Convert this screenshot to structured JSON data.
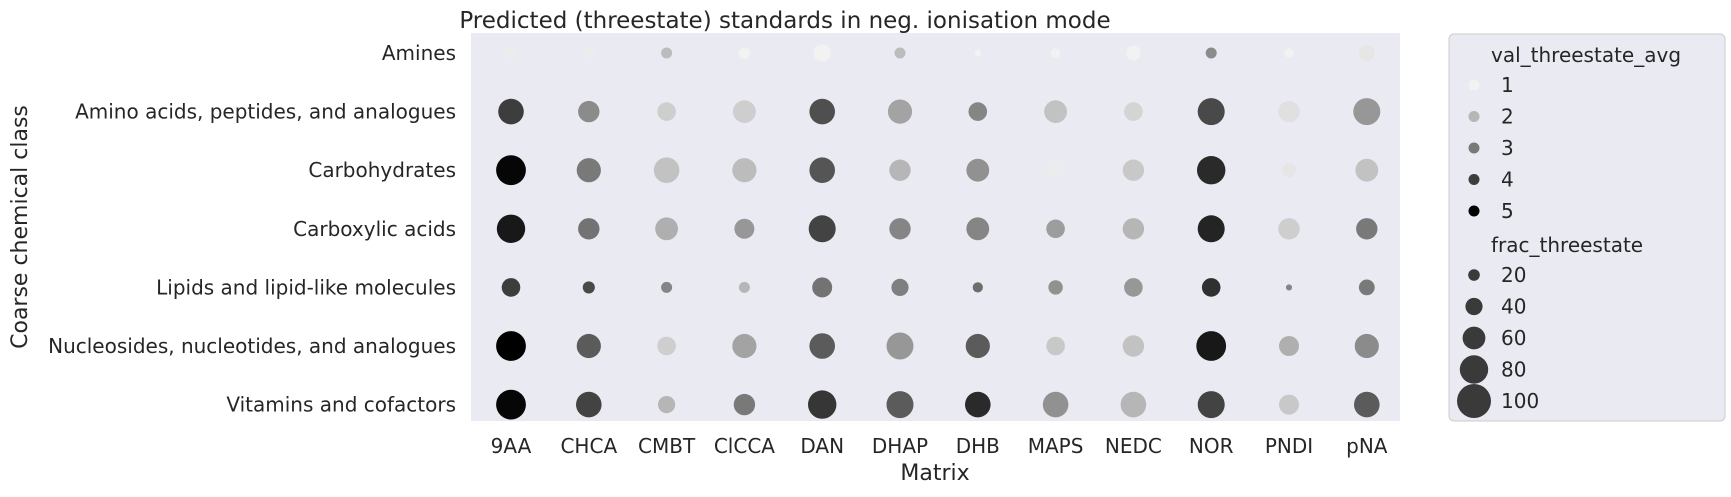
{
  "chart_data": {
    "type": "scatter",
    "title": "Predicted (threestate) standards in neg. ionisation mode",
    "xlabel": "Matrix",
    "ylabel": "Coarse chemical class",
    "categories_x": [
      "9AA",
      "CHCA",
      "CMBT",
      "ClCCA",
      "DAN",
      "DHAP",
      "DHB",
      "MAPS",
      "NEDC",
      "NOR",
      "PNDI",
      "pNA"
    ],
    "categories_y": [
      "Amines",
      "Amino acids, peptides, and analogues",
      "Carbohydrates",
      "Carboxylic acids",
      "Lipids and lipid-like molecules",
      "Nucleosides, nucleotides, and analogues",
      "Vitamins and cofactors"
    ],
    "color_field": "val_threestate_avg",
    "size_field": "frac_threestate",
    "color_levels": [
      1,
      2,
      3,
      4,
      5
    ],
    "size_levels": [
      20,
      40,
      60,
      80,
      100
    ],
    "legend_position": "right, outside plot",
    "grid": false,
    "background": "#eaeaf2",
    "colors": {
      "low": "#f2f2f2",
      "high": "#000000"
    },
    "points": [
      {
        "x": "9AA",
        "y": "Amines",
        "color": 1.1,
        "size": 25
      },
      {
        "x": "CHCA",
        "y": "Amines",
        "color": 1.1,
        "size": 22
      },
      {
        "x": "CMBT",
        "y": "Amines",
        "color": 1.9,
        "size": 18
      },
      {
        "x": "ClCCA",
        "y": "Amines",
        "color": 1.0,
        "size": 20
      },
      {
        "x": "DAN",
        "y": "Amines",
        "color": 1.0,
        "size": 40
      },
      {
        "x": "DHAP",
        "y": "Amines",
        "color": 1.9,
        "size": 18
      },
      {
        "x": "DHB",
        "y": "Amines",
        "color": 1.0,
        "size": 3
      },
      {
        "x": "MAPS",
        "y": "Amines",
        "color": 1.0,
        "size": 12
      },
      {
        "x": "NEDC",
        "y": "Amines",
        "color": 1.0,
        "size": 30
      },
      {
        "x": "NOR",
        "y": "Amines",
        "color": 2.7,
        "size": 18
      },
      {
        "x": "PNDI",
        "y": "Amines",
        "color": 1.0,
        "size": 12
      },
      {
        "x": "pNA",
        "y": "Amines",
        "color": 1.2,
        "size": 35
      },
      {
        "x": "9AA",
        "y": "Amino acids, peptides, and analogues",
        "color": 4.0,
        "size": 70
      },
      {
        "x": "CHCA",
        "y": "Amino acids, peptides, and analogues",
        "color": 2.7,
        "size": 55
      },
      {
        "x": "CMBT",
        "y": "Amino acids, peptides, and analogues",
        "color": 1.6,
        "size": 45
      },
      {
        "x": "ClCCA",
        "y": "Amino acids, peptides, and analogues",
        "color": 1.6,
        "size": 60
      },
      {
        "x": "DAN",
        "y": "Amino acids, peptides, and analogues",
        "color": 3.7,
        "size": 70
      },
      {
        "x": "DHAP",
        "y": "Amino acids, peptides, and analogues",
        "color": 2.3,
        "size": 65
      },
      {
        "x": "DHB",
        "y": "Amino acids, peptides, and analogues",
        "color": 2.8,
        "size": 45
      },
      {
        "x": "MAPS",
        "y": "Amino acids, peptides, and analogues",
        "color": 1.8,
        "size": 60
      },
      {
        "x": "NEDC",
        "y": "Amino acids, peptides, and analogues",
        "color": 1.5,
        "size": 45
      },
      {
        "x": "NOR",
        "y": "Amino acids, peptides, and analogues",
        "color": 3.8,
        "size": 75
      },
      {
        "x": "PNDI",
        "y": "Amino acids, peptides, and analogues",
        "color": 1.3,
        "size": 55
      },
      {
        "x": "pNA",
        "y": "Amino acids, peptides, and analogues",
        "color": 2.5,
        "size": 75
      },
      {
        "x": "9AA",
        "y": "Carbohydrates",
        "color": 4.9,
        "size": 85
      },
      {
        "x": "CHCA",
        "y": "Carbohydrates",
        "color": 3.0,
        "size": 65
      },
      {
        "x": "CMBT",
        "y": "Carbohydrates",
        "color": 1.8,
        "size": 70
      },
      {
        "x": "ClCCA",
        "y": "Carbohydrates",
        "color": 1.9,
        "size": 65
      },
      {
        "x": "DAN",
        "y": "Carbohydrates",
        "color": 3.6,
        "size": 70
      },
      {
        "x": "DHAP",
        "y": "Carbohydrates",
        "color": 2.0,
        "size": 55
      },
      {
        "x": "DHB",
        "y": "Carbohydrates",
        "color": 2.6,
        "size": 60
      },
      {
        "x": "MAPS",
        "y": "Carbohydrates",
        "color": 1.1,
        "size": 35
      },
      {
        "x": "NEDC",
        "y": "Carbohydrates",
        "color": 1.7,
        "size": 55
      },
      {
        "x": "NOR",
        "y": "Carbohydrates",
        "color": 4.3,
        "size": 80
      },
      {
        "x": "PNDI",
        "y": "Carbohydrates",
        "color": 1.2,
        "size": 30
      },
      {
        "x": "pNA",
        "y": "Carbohydrates",
        "color": 1.8,
        "size": 60
      },
      {
        "x": "9AA",
        "y": "Carboxylic acids",
        "color": 4.6,
        "size": 80
      },
      {
        "x": "CHCA",
        "y": "Carboxylic acids",
        "color": 3.1,
        "size": 55
      },
      {
        "x": "CMBT",
        "y": "Carboxylic acids",
        "color": 2.1,
        "size": 60
      },
      {
        "x": "ClCCA",
        "y": "Carboxylic acids",
        "color": 2.5,
        "size": 50
      },
      {
        "x": "DAN",
        "y": "Carboxylic acids",
        "color": 3.9,
        "size": 75
      },
      {
        "x": "DHAP",
        "y": "Carboxylic acids",
        "color": 2.8,
        "size": 55
      },
      {
        "x": "DHB",
        "y": "Carboxylic acids",
        "color": 2.8,
        "size": 60
      },
      {
        "x": "MAPS",
        "y": "Carboxylic acids",
        "color": 2.4,
        "size": 45
      },
      {
        "x": "NEDC",
        "y": "Carboxylic acids",
        "color": 2.0,
        "size": 55
      },
      {
        "x": "NOR",
        "y": "Carboxylic acids",
        "color": 4.4,
        "size": 75
      },
      {
        "x": "PNDI",
        "y": "Carboxylic acids",
        "color": 1.6,
        "size": 55
      },
      {
        "x": "pNA",
        "y": "Carboxylic acids",
        "color": 3.0,
        "size": 55
      },
      {
        "x": "9AA",
        "y": "Lipids and lipid-like molecules",
        "color": 4.0,
        "size": 45
      },
      {
        "x": "CHCA",
        "y": "Lipids and lipid-like molecules",
        "color": 3.8,
        "size": 22
      },
      {
        "x": "CMBT",
        "y": "Lipids and lipid-like molecules",
        "color": 2.8,
        "size": 18
      },
      {
        "x": "ClCCA",
        "y": "Lipids and lipid-like molecules",
        "color": 2.0,
        "size": 18
      },
      {
        "x": "DAN",
        "y": "Lipids and lipid-like molecules",
        "color": 3.1,
        "size": 50
      },
      {
        "x": "DHAP",
        "y": "Lipids and lipid-like molecules",
        "color": 2.9,
        "size": 40
      },
      {
        "x": "DHB",
        "y": "Lipids and lipid-like molecules",
        "color": 3.2,
        "size": 15
      },
      {
        "x": "MAPS",
        "y": "Lipids and lipid-like molecules",
        "color": 2.6,
        "size": 30
      },
      {
        "x": "NEDC",
        "y": "Lipids and lipid-like molecules",
        "color": 2.5,
        "size": 45
      },
      {
        "x": "NOR",
        "y": "Lipids and lipid-like molecules",
        "color": 4.2,
        "size": 45
      },
      {
        "x": "PNDI",
        "y": "Lipids and lipid-like molecules",
        "color": 2.8,
        "size": 0.5
      },
      {
        "x": "pNA",
        "y": "Lipids and lipid-like molecules",
        "color": 3.0,
        "size": 35
      },
      {
        "x": "9AA",
        "y": "Nucleosides, nucleotides, and analogues",
        "color": 5.0,
        "size": 85
      },
      {
        "x": "CHCA",
        "y": "Nucleosides, nucleotides, and analogues",
        "color": 3.5,
        "size": 65
      },
      {
        "x": "CMBT",
        "y": "Nucleosides, nucleotides, and analogues",
        "color": 1.6,
        "size": 45
      },
      {
        "x": "ClCCA",
        "y": "Nucleosides, nucleotides, and analogues",
        "color": 2.3,
        "size": 65
      },
      {
        "x": "DAN",
        "y": "Nucleosides, nucleotides, and analogues",
        "color": 3.5,
        "size": 70
      },
      {
        "x": "DHAP",
        "y": "Nucleosides, nucleotides, and analogues",
        "color": 2.5,
        "size": 75
      },
      {
        "x": "DHB",
        "y": "Nucleosides, nucleotides, and analogues",
        "color": 3.5,
        "size": 65
      },
      {
        "x": "MAPS",
        "y": "Nucleosides, nucleotides, and analogues",
        "color": 1.7,
        "size": 45
      },
      {
        "x": "NEDC",
        "y": "Nucleosides, nucleotides, and analogues",
        "color": 1.8,
        "size": 55
      },
      {
        "x": "NOR",
        "y": "Nucleosides, nucleotides, and analogues",
        "color": 4.6,
        "size": 85
      },
      {
        "x": "PNDI",
        "y": "Nucleosides, nucleotides, and analogues",
        "color": 2.1,
        "size": 50
      },
      {
        "x": "pNA",
        "y": "Nucleosides, nucleotides, and analogues",
        "color": 2.7,
        "size": 65
      },
      {
        "x": "9AA",
        "y": "Vitamins and cofactors",
        "color": 4.9,
        "size": 85
      },
      {
        "x": "CHCA",
        "y": "Vitamins and cofactors",
        "color": 3.9,
        "size": 70
      },
      {
        "x": "CMBT",
        "y": "Vitamins and cofactors",
        "color": 2.0,
        "size": 40
      },
      {
        "x": "ClCCA",
        "y": "Vitamins and cofactors",
        "color": 3.0,
        "size": 55
      },
      {
        "x": "DAN",
        "y": "Vitamins and cofactors",
        "color": 4.1,
        "size": 80
      },
      {
        "x": "DHAP",
        "y": "Vitamins and cofactors",
        "color": 3.5,
        "size": 75
      },
      {
        "x": "DHB",
        "y": "Vitamins and cofactors",
        "color": 4.3,
        "size": 70
      },
      {
        "x": "MAPS",
        "y": "Vitamins and cofactors",
        "color": 2.6,
        "size": 70
      },
      {
        "x": "NEDC",
        "y": "Vitamins and cofactors",
        "color": 2.0,
        "size": 70
      },
      {
        "x": "NOR",
        "y": "Vitamins and cofactors",
        "color": 3.9,
        "size": 75
      },
      {
        "x": "PNDI",
        "y": "Vitamins and cofactors",
        "color": 1.7,
        "size": 50
      },
      {
        "x": "pNA",
        "y": "Vitamins and cofactors",
        "color": 3.5,
        "size": 70
      }
    ]
  }
}
